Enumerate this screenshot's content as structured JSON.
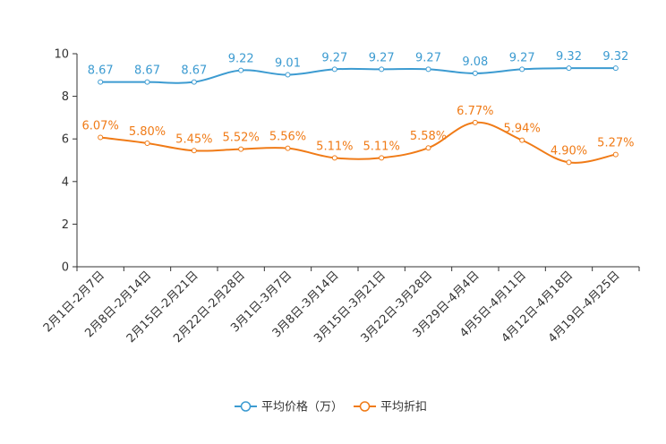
{
  "chart_data": {
    "type": "line",
    "title": "",
    "xlabel": "",
    "ylabel": "",
    "ylim": [
      0,
      10
    ],
    "yticks": [
      0,
      2,
      4,
      6,
      8,
      10
    ],
    "grid": false,
    "legend_position": "bottom-center",
    "categories": [
      "2月1日-2月7日",
      "2月8日-2月14日",
      "2月15日-2月21日",
      "2月22日-2月28日",
      "3月1日-3月7日",
      "3月8日-3月14日",
      "3月15日-3月21日",
      "3月22日-3月28日",
      "3月29日-4月4日",
      "4月5日-4月11日",
      "4月12日-4月18日",
      "4月19日-4月25日"
    ],
    "series": [
      {
        "name": "平均价格（万）",
        "color": "#3c9bd1",
        "values": [
          8.67,
          8.67,
          8.67,
          9.22,
          9.01,
          9.27,
          9.27,
          9.27,
          9.08,
          9.27,
          9.32,
          9.32
        ],
        "labels": [
          "8.67",
          "8.67",
          "8.67",
          "9.22",
          "9.01",
          "9.27",
          "9.27",
          "9.27",
          "9.08",
          "9.27",
          "9.32",
          "9.32"
        ]
      },
      {
        "name": "平均折扣",
        "color": "#f07b17",
        "values": [
          6.07,
          5.8,
          5.45,
          5.52,
          5.56,
          5.11,
          5.11,
          5.58,
          6.77,
          5.94,
          4.9,
          5.27
        ],
        "labels": [
          "6.07%",
          "5.80%",
          "5.45%",
          "5.52%",
          "5.56%",
          "5.11%",
          "5.11%",
          "5.58%",
          "6.77%",
          "5.94%",
          "4.90%",
          "5.27%"
        ]
      }
    ]
  }
}
